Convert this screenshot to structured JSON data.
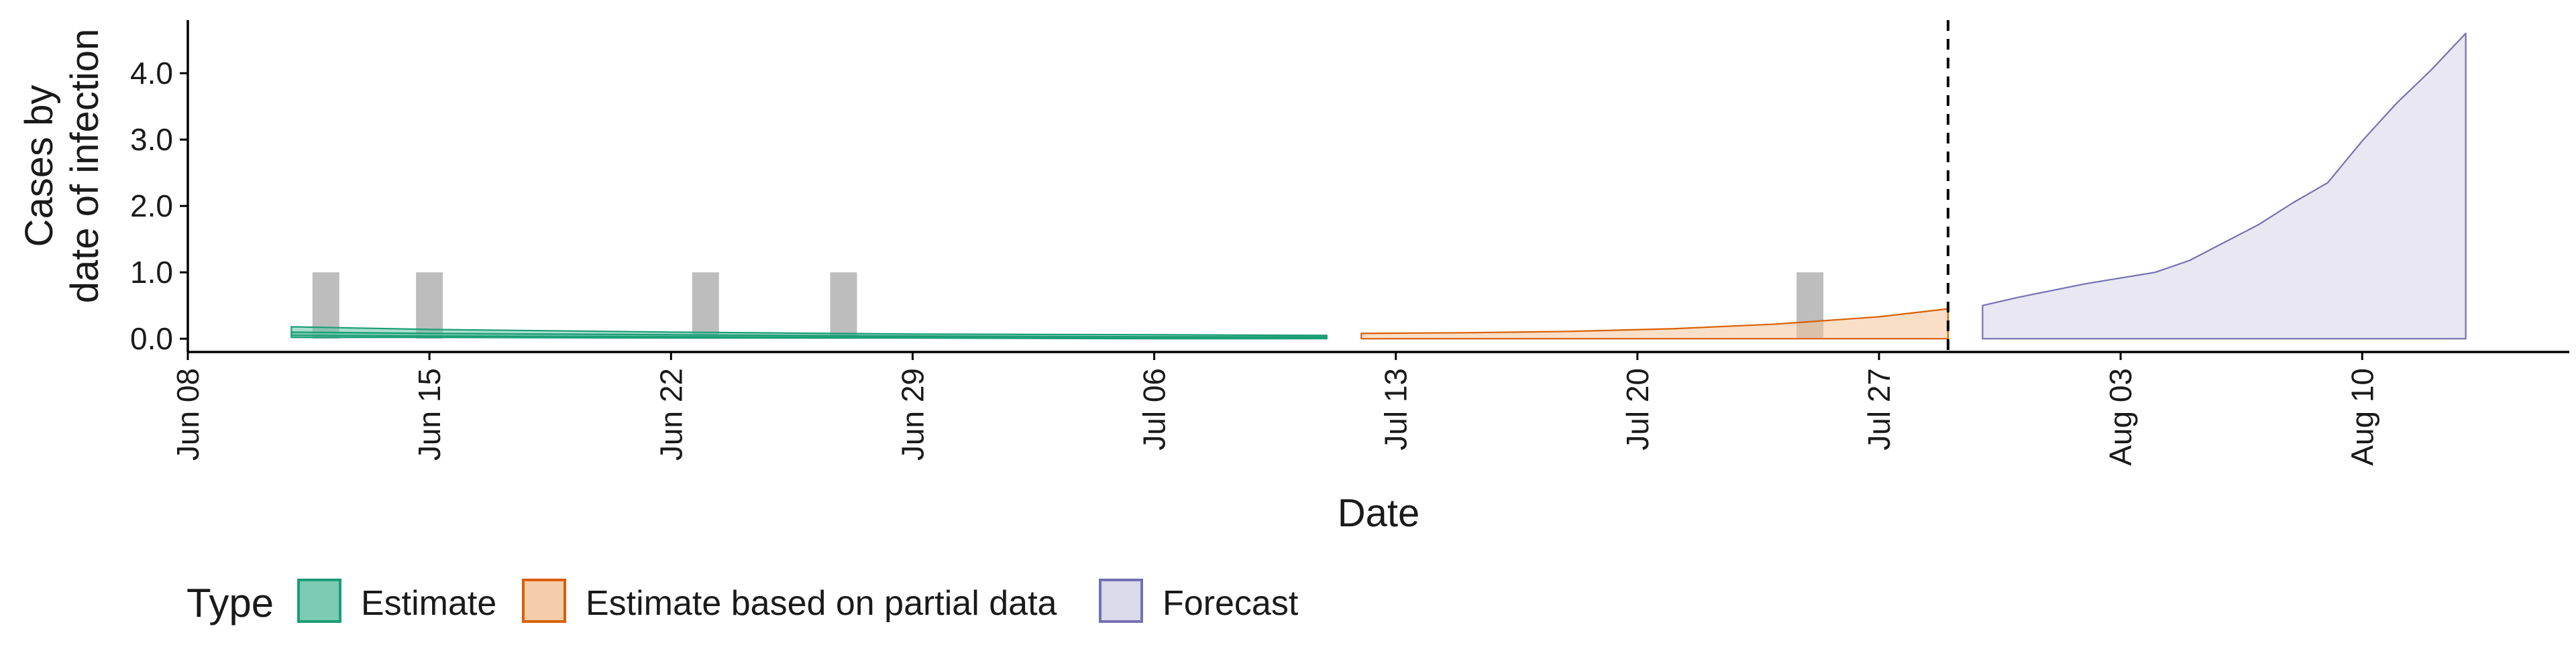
{
  "chart_data": {
    "type": "area",
    "title": "",
    "xlabel": "Date",
    "ylabel_lines": [
      "Cases by",
      "date of infection"
    ],
    "x_domain": [
      "2020-06-08",
      "2020-08-16"
    ],
    "ylim": [
      -0.2,
      4.8
    ],
    "x_ticks": [
      {
        "date": "2020-06-08",
        "label": "Jun 08"
      },
      {
        "date": "2020-06-15",
        "label": "Jun 15"
      },
      {
        "date": "2020-06-22",
        "label": "Jun 22"
      },
      {
        "date": "2020-06-29",
        "label": "Jun 29"
      },
      {
        "date": "2020-07-06",
        "label": "Jul 06"
      },
      {
        "date": "2020-07-13",
        "label": "Jul 13"
      },
      {
        "date": "2020-07-20",
        "label": "Jul 20"
      },
      {
        "date": "2020-07-27",
        "label": "Jul 27"
      },
      {
        "date": "2020-08-03",
        "label": "Aug 03"
      },
      {
        "date": "2020-08-10",
        "label": "Aug 10"
      }
    ],
    "y_ticks": [
      {
        "value": 0,
        "label": "0.0"
      },
      {
        "value": 1,
        "label": "1.0"
      },
      {
        "value": 2,
        "label": "2.0"
      },
      {
        "value": 3,
        "label": "3.0"
      },
      {
        "value": 4,
        "label": "4.0"
      }
    ],
    "reported_cases": [
      {
        "date": "2020-06-12",
        "value": 1
      },
      {
        "date": "2020-06-15",
        "value": 1
      },
      {
        "date": "2020-06-23",
        "value": 1
      },
      {
        "date": "2020-06-27",
        "value": 1
      },
      {
        "date": "2020-07-25",
        "value": 1
      }
    ],
    "forecast_start": "2020-07-29",
    "series": [
      {
        "name": "Estimate",
        "color": "#1b9e77",
        "fill": "#66c2a5",
        "bands": [
          {
            "x": [
              "2020-06-11",
              "2020-06-15",
              "2020-06-22",
              "2020-06-29",
              "2020-07-06",
              "2020-07-11"
            ],
            "lower": [
              0.02,
              0.02,
              0.01,
              0.01,
              0.0,
              0.0
            ],
            "upper": [
              0.18,
              0.14,
              0.1,
              0.07,
              0.06,
              0.05
            ]
          },
          {
            "x": [
              "2020-06-11",
              "2020-06-15",
              "2020-06-22",
              "2020-06-29",
              "2020-07-06",
              "2020-07-11"
            ],
            "lower": [
              0.05,
              0.04,
              0.03,
              0.02,
              0.02,
              0.02
            ],
            "upper": [
              0.1,
              0.08,
              0.06,
              0.04,
              0.03,
              0.03
            ]
          }
        ]
      },
      {
        "name": "Estimate based on partial data",
        "color": "#d95f02",
        "fill": "#f4c49b",
        "bands": [
          {
            "x": [
              "2020-07-12",
              "2020-07-15",
              "2020-07-18",
              "2020-07-21",
              "2020-07-24",
              "2020-07-27",
              "2020-07-29"
            ],
            "lower": [
              0,
              0,
              0,
              0,
              0,
              0,
              0
            ],
            "upper": [
              0.08,
              0.09,
              0.11,
              0.15,
              0.22,
              0.33,
              0.45
            ]
          }
        ]
      },
      {
        "name": "Forecast",
        "color": "#7570b3",
        "fill": "#d5d3e8",
        "bands": [
          {
            "x": [
              "2020-07-30",
              "2020-07-31",
              "2020-08-02",
              "2020-08-04",
              "2020-08-05",
              "2020-08-06",
              "2020-08-07",
              "2020-08-08",
              "2020-08-09",
              "2020-08-10",
              "2020-08-11",
              "2020-08-12",
              "2020-08-13"
            ],
            "lower": [
              0,
              0,
              0,
              0,
              0,
              0,
              0,
              0,
              0,
              0,
              0,
              0,
              0
            ],
            "upper": [
              0.5,
              0.62,
              0.83,
              1.0,
              1.18,
              1.45,
              1.72,
              2.05,
              2.35,
              2.98,
              3.55,
              4.05,
              4.6
            ]
          }
        ]
      }
    ],
    "legend": {
      "title": "Type",
      "position": "bottom",
      "items": [
        "Estimate",
        "Estimate based on partial data",
        "Forecast"
      ]
    },
    "grid": false
  }
}
